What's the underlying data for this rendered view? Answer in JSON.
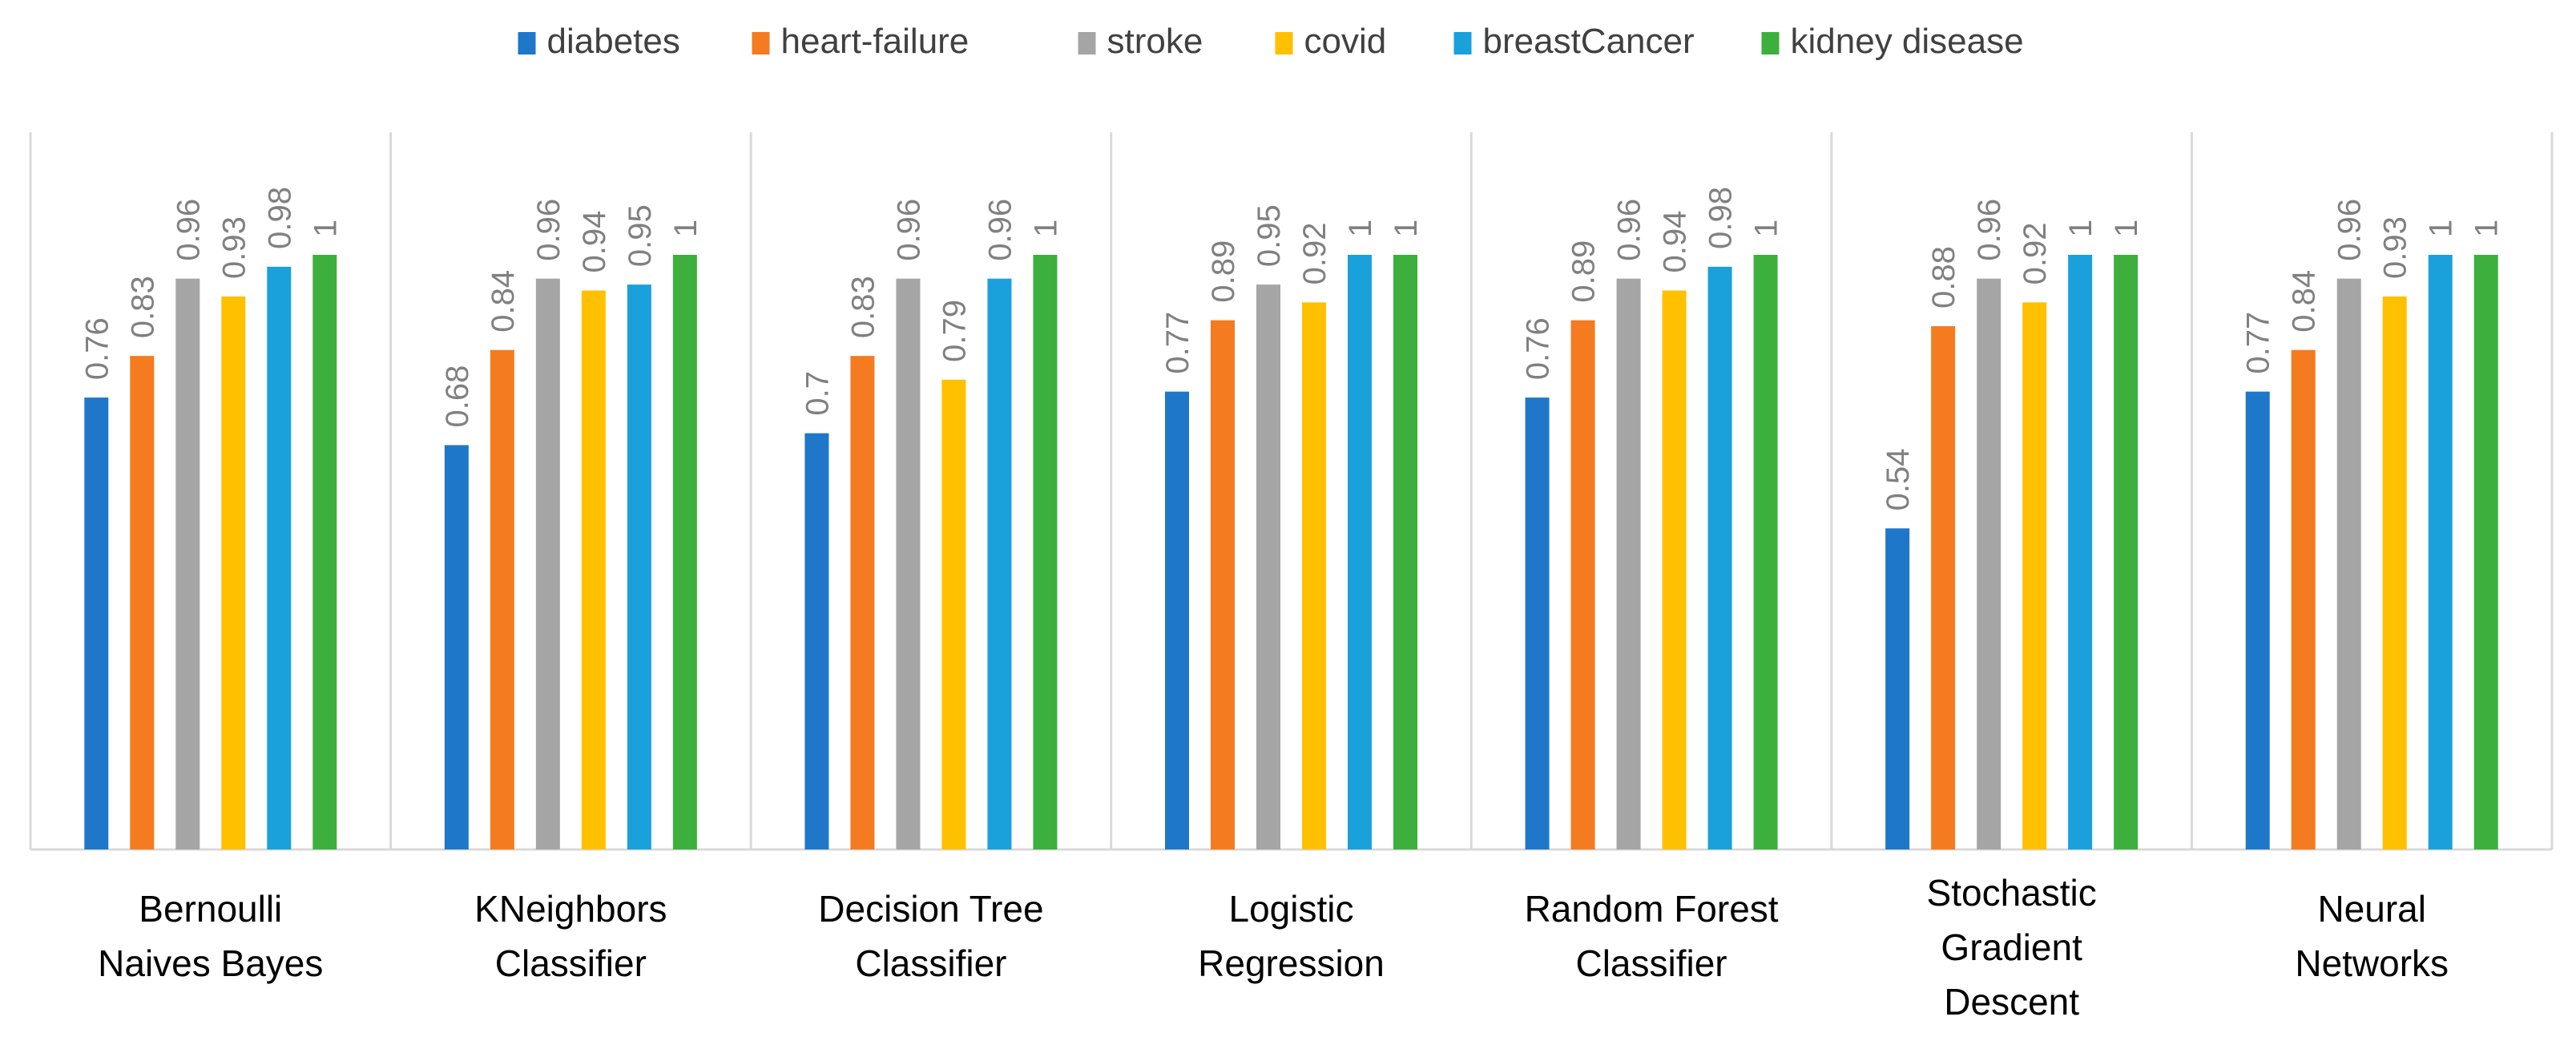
{
  "chart_data": {
    "type": "bar",
    "title": "",
    "xlabel": "",
    "ylabel": "",
    "ylim": [
      0,
      1.05
    ],
    "grid": false,
    "legend_position": "top-center",
    "categories": [
      [
        "Bernoulli",
        "Naives Bayes"
      ],
      [
        "KNeighbors",
        "Classifier"
      ],
      [
        "Decision Tree",
        "Classifier"
      ],
      [
        "Logistic",
        "Regression"
      ],
      [
        "Random Forest",
        "Classifier"
      ],
      [
        "Stochastic",
        "Gradient",
        "Descent"
      ],
      [
        "Neural",
        "Networks"
      ]
    ],
    "series": [
      {
        "name": "diabetes",
        "color": "#1f77c9",
        "values": [
          0.76,
          0.68,
          0.7,
          0.77,
          0.76,
          0.54,
          0.77
        ],
        "labels": [
          "0.76",
          "0.68",
          "0.7",
          "0.77",
          "0.76",
          "0.54",
          "0.77"
        ]
      },
      {
        "name": "heart-failure",
        "color": "#f47b20",
        "values": [
          0.83,
          0.84,
          0.83,
          0.89,
          0.89,
          0.88,
          0.84
        ],
        "labels": [
          "0.83",
          "0.84",
          "0.83",
          "0.89",
          "0.89",
          "0.88",
          "0.84"
        ]
      },
      {
        "name": "stroke",
        "color": "#a5a5a5",
        "values": [
          0.96,
          0.96,
          0.96,
          0.95,
          0.96,
          0.96,
          0.96
        ],
        "labels": [
          "0.96",
          "0.96",
          "0.96",
          "0.95",
          "0.96",
          "0.96",
          "0.96"
        ]
      },
      {
        "name": "covid",
        "color": "#ffc000",
        "values": [
          0.93,
          0.94,
          0.79,
          0.92,
          0.94,
          0.92,
          0.93
        ],
        "labels": [
          "0.93",
          "0.94",
          "0.79",
          "0.92",
          "0.94",
          "0.92",
          "0.93"
        ]
      },
      {
        "name": "breastCancer",
        "color": "#1aa0db",
        "values": [
          0.98,
          0.95,
          0.96,
          1,
          0.98,
          1,
          1
        ],
        "labels": [
          "0.98",
          "0.95",
          "0.96",
          "1",
          "0.98",
          "1",
          "1"
        ]
      },
      {
        "name": "kidney disease",
        "color": "#3daf3d",
        "values": [
          1,
          1,
          1,
          1,
          1,
          1,
          1
        ],
        "labels": [
          "1",
          "1",
          "1",
          "1",
          "1",
          "1",
          "1"
        ]
      }
    ]
  }
}
